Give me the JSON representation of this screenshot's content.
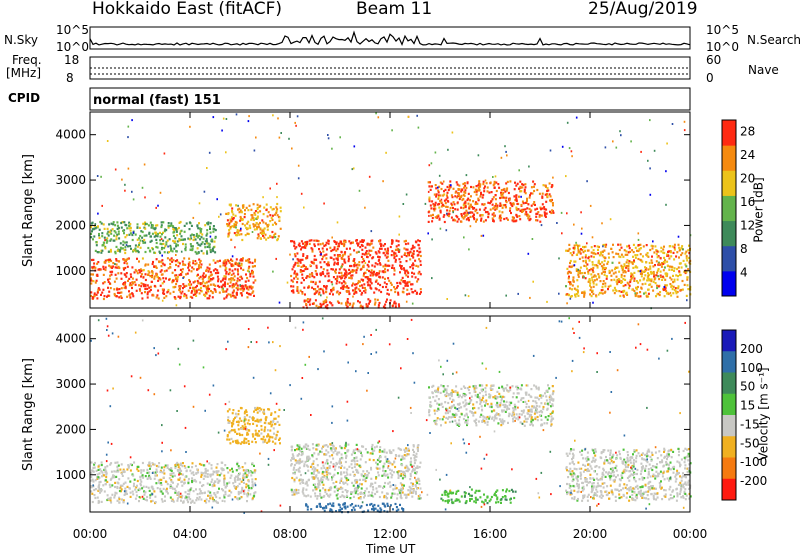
{
  "header": {
    "station": "Hokkaido East (fitACF)",
    "beam": "Beam 11",
    "date": "25/Aug/2019"
  },
  "top_panels": {
    "nsky_label": "N.Sky",
    "nsearch_label": "N.Search",
    "noise_ticks": [
      "10^5",
      "10^0"
    ],
    "freq_label": "Freq.",
    "freq_unit": "[MHz]",
    "freq_ticks": [
      "18",
      "8"
    ],
    "nave_label": "Nave",
    "nave_ticks": [
      "60",
      "0"
    ],
    "cpid_label": "CPID",
    "cpid_value": "normal (fast) 151"
  },
  "chart_data": [
    {
      "type": "heatmap",
      "panel": "power",
      "ylabel": "Slant Range [km]",
      "xlabel": "",
      "x_ticks": [
        "00:00",
        "04:00",
        "08:00",
        "12:00",
        "16:00",
        "20:00",
        "00:00"
      ],
      "xlim_hours": [
        0,
        24
      ],
      "y_ticks": [
        1000,
        2000,
        3000,
        4000
      ],
      "ylim": [
        180,
        4500
      ],
      "colorbar": {
        "label": "Power [dB]",
        "ticks": [
          4,
          8,
          12,
          16,
          20,
          24,
          28
        ],
        "range": [
          0,
          30
        ],
        "colors": [
          "#0000ee",
          "#2e4fa8",
          "#3e8a5a",
          "#63b34b",
          "#ecc31a",
          "#f58a0f",
          "#ff2a12"
        ]
      },
      "echo_regions": [
        {
          "t": [
            0,
            6.6
          ],
          "r": [
            400,
            1300
          ],
          "level": 26
        },
        {
          "t": [
            5.4,
            7.6
          ],
          "r": [
            1700,
            2500
          ],
          "level": 22
        },
        {
          "t": [
            8.0,
            13.2
          ],
          "r": [
            500,
            1700
          ],
          "level": 28
        },
        {
          "t": [
            13.5,
            18.5
          ],
          "r": [
            2100,
            3000
          ],
          "level": 26
        },
        {
          "t": [
            19.0,
            24.0
          ],
          "r": [
            450,
            1600
          ],
          "level": 22
        },
        {
          "t": [
            8.5,
            12.5
          ],
          "r": [
            200,
            400
          ],
          "level": 28
        },
        {
          "t": [
            0,
            5.0
          ],
          "r": [
            1400,
            2100
          ],
          "level": 14
        }
      ]
    },
    {
      "type": "heatmap",
      "panel": "velocity",
      "ylabel": "Slant Range [km]",
      "xlabel": "Time UT",
      "x_ticks": [
        "00:00",
        "04:00",
        "08:00",
        "12:00",
        "16:00",
        "20:00",
        "00:00"
      ],
      "xlim_hours": [
        0,
        24
      ],
      "y_ticks": [
        1000,
        2000,
        3000,
        4000
      ],
      "ylim": [
        180,
        4500
      ],
      "colorbar": {
        "label": "Velocity [m s⁻¹]",
        "ticks": [
          "200",
          "100",
          "50",
          "15",
          "-15",
          "-50",
          "-100",
          "-200"
        ],
        "range": [
          -250,
          250
        ],
        "colors": [
          "#1a1ab8",
          "#2f6fa8",
          "#3e8a5a",
          "#4ec23a",
          "#c8c8c4",
          "#f0b020",
          "#f57a10",
          "#ff1a10"
        ]
      },
      "echo_regions": [
        {
          "t": [
            0,
            6.6
          ],
          "r": [
            400,
            1300
          ],
          "level": 0
        },
        {
          "t": [
            5.4,
            7.6
          ],
          "r": [
            1700,
            2500
          ],
          "level": -30
        },
        {
          "t": [
            8.0,
            13.2
          ],
          "r": [
            500,
            1700
          ],
          "level": 0
        },
        {
          "t": [
            13.5,
            18.5
          ],
          "r": [
            2100,
            3000
          ],
          "level": 0
        },
        {
          "t": [
            19.0,
            24.0
          ],
          "r": [
            450,
            1600
          ],
          "level": 0
        },
        {
          "t": [
            8.5,
            12.5
          ],
          "r": [
            200,
            400
          ],
          "level": 120
        },
        {
          "t": [
            14.0,
            17.0
          ],
          "r": [
            400,
            700
          ],
          "level": 40
        }
      ]
    }
  ],
  "colors": {
    "axis": "#000000",
    "ground": "#ffffff"
  }
}
